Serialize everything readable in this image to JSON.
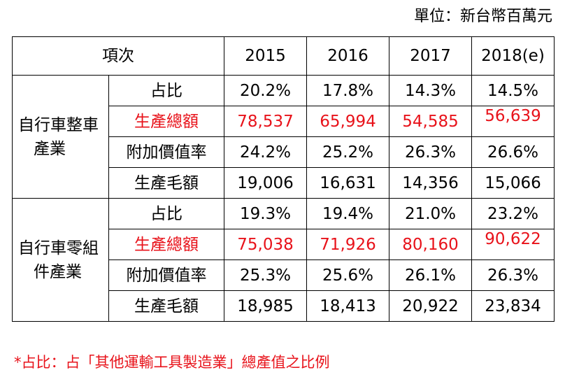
{
  "unit_note": "單位：新台幣百萬元",
  "header": {
    "item_label": "項次",
    "years": [
      "2015",
      "2016",
      "2017",
      "2018(e)"
    ]
  },
  "groups": [
    {
      "line1": "自行車整車",
      "line2": "產業",
      "rows": [
        {
          "label": "占比",
          "values": [
            "20.2%",
            "17.8%",
            "14.3%",
            "14.5%"
          ],
          "highlight": false
        },
        {
          "label": "生產總額",
          "values": [
            "78,537",
            "65,994",
            "54,585",
            "56,639"
          ],
          "highlight": true
        },
        {
          "label": "附加價值率",
          "values": [
            "24.2%",
            "25.2%",
            "26.3%",
            "26.6%"
          ],
          "highlight": false
        },
        {
          "label": "生產毛額",
          "values": [
            "19,006",
            "16,631",
            "14,356",
            "15,066"
          ],
          "highlight": false
        }
      ]
    },
    {
      "line1": "自行車零組",
      "line2": "件產業",
      "rows": [
        {
          "label": "占比",
          "values": [
            "19.3%",
            "19.4%",
            "21.0%",
            "23.2%"
          ],
          "highlight": false
        },
        {
          "label": "生產總額",
          "values": [
            "75,038",
            "71,926",
            "80,160",
            "90,622"
          ],
          "highlight": true
        },
        {
          "label": "附加價值率",
          "values": [
            "25.3%",
            "25.6%",
            "26.1%",
            "26.3%"
          ],
          "highlight": false
        },
        {
          "label": "生產毛額",
          "values": [
            "18,985",
            "18,413",
            "20,922",
            "23,834"
          ],
          "highlight": false
        }
      ]
    }
  ],
  "footnote": "*占比：占「其他運輸工具製造業」總產值之比例",
  "colors": {
    "highlight": "#e8121a",
    "border": "#000000"
  }
}
